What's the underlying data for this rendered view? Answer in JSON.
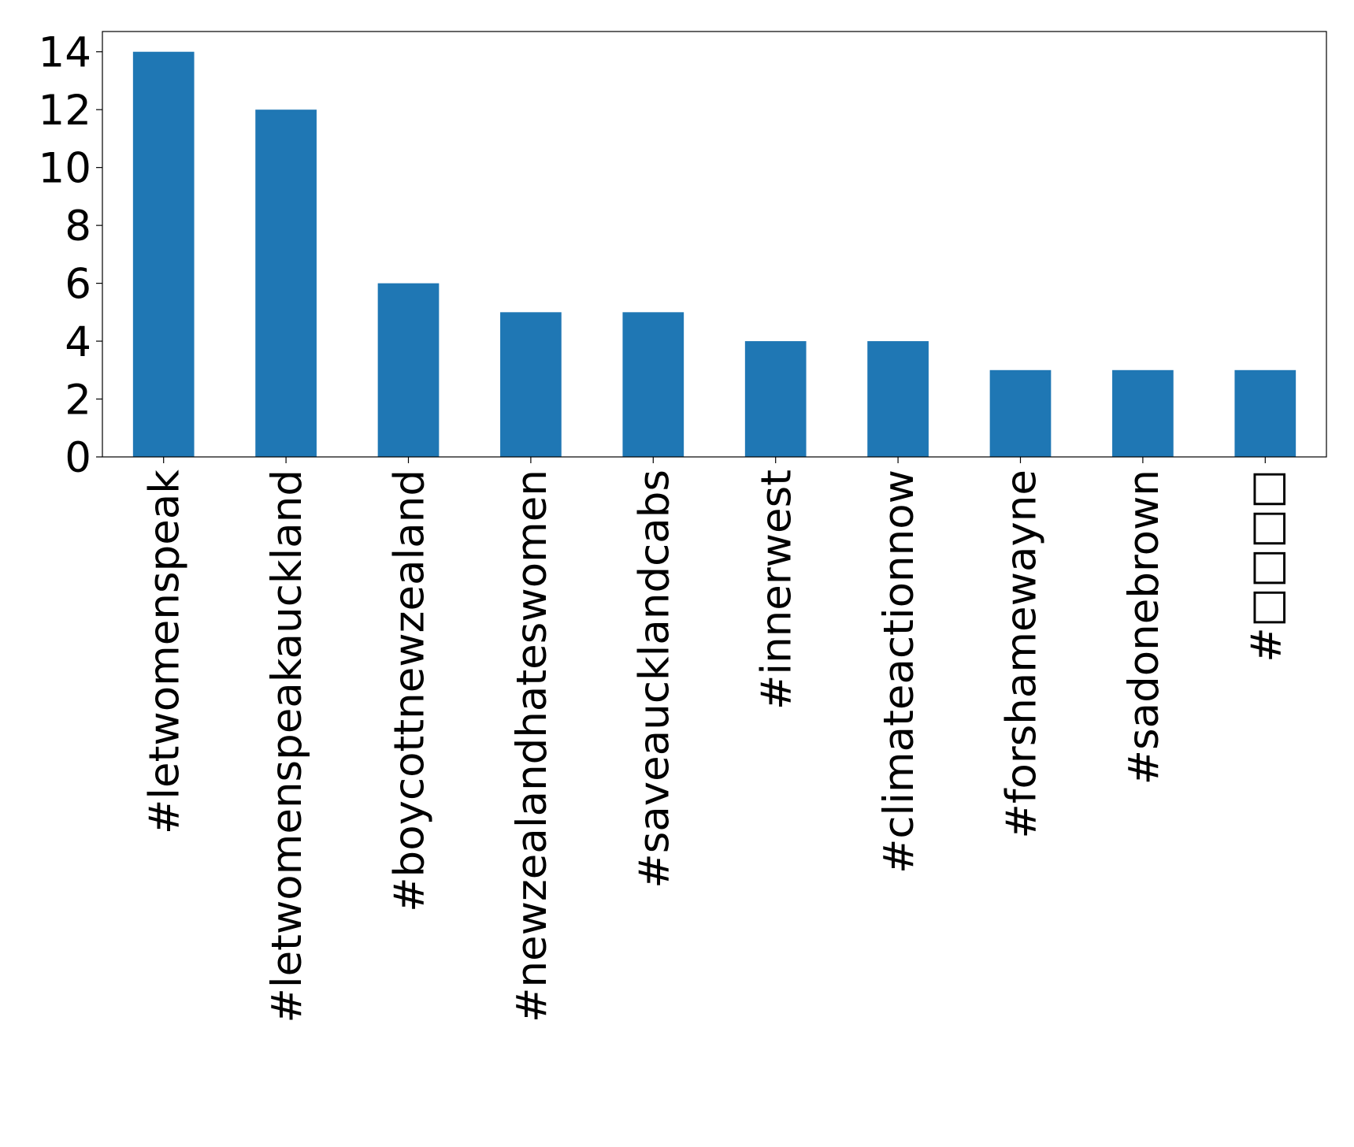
{
  "chart_data": {
    "type": "bar",
    "categories": [
      "#letwomenspeak",
      "#letwomenspeakauckland",
      "#boycottnewzealand",
      "#newzealandhateswomen",
      "#saveaucklandcabs",
      "#innerwest",
      "#climateactionnow",
      "#forshamewayne",
      "#sadonebrown",
      "#□□□□"
    ],
    "values": [
      14,
      12,
      6,
      5,
      5,
      4,
      4,
      3,
      3,
      3
    ],
    "color": "#1f77b4",
    "ylim": [
      0,
      14.7
    ],
    "yticks": [
      0,
      2,
      4,
      6,
      8,
      10,
      12,
      14
    ],
    "grid": false
  }
}
